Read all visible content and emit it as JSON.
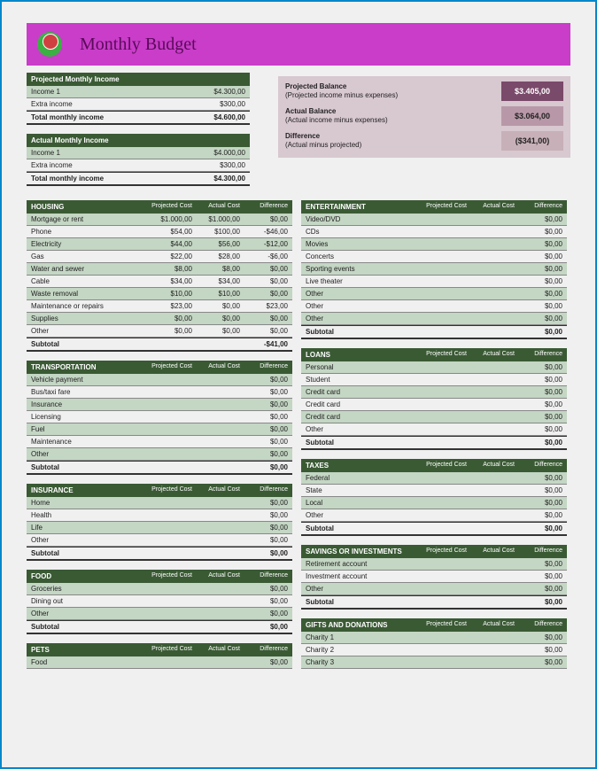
{
  "title": "Monthly Budget",
  "colors": {
    "titlebar": "#c93dc9",
    "header": "#3a5a34",
    "alt_row": "#c4d6c4",
    "summary_bg": "#d8c8d0",
    "page_bg": "#f0f0f0",
    "border": "#0088cc"
  },
  "col_labels": {
    "proj": "Projected Cost",
    "act": "Actual Cost",
    "diff": "Difference"
  },
  "projected_income": {
    "title": "Projected Monthly Income",
    "rows": [
      {
        "label": "Income 1",
        "value": "$4.300,00"
      },
      {
        "label": "Extra income",
        "value": "$300,00"
      }
    ],
    "total": {
      "label": "Total monthly income",
      "value": "$4.600,00"
    }
  },
  "actual_income": {
    "title": "Actual Monthly Income",
    "rows": [
      {
        "label": "Income 1",
        "value": "$4.000,00"
      },
      {
        "label": "Extra income",
        "value": "$300,00"
      }
    ],
    "total": {
      "label": "Total monthly income",
      "value": "$4.300,00"
    }
  },
  "summary": [
    {
      "title": "Projected Balance",
      "sub": "(Projected income minus expenses)",
      "value": "$3.405,00",
      "box": "box1"
    },
    {
      "title": "Actual Balance",
      "sub": "(Actual income minus expenses)",
      "value": "$3.064,00",
      "box": "box2"
    },
    {
      "title": "Difference",
      "sub": "(Actual minus projected)",
      "value": "($341,00)",
      "box": "box3"
    }
  ],
  "left_cats": [
    {
      "title": "HOUSING",
      "rows": [
        {
          "n": "Mortgage or rent",
          "p": "$1.000,00",
          "a": "$1.000,00",
          "d": "$0,00"
        },
        {
          "n": "Phone",
          "p": "$54,00",
          "a": "$100,00",
          "d": "-$46,00"
        },
        {
          "n": "Electricity",
          "p": "$44,00",
          "a": "$56,00",
          "d": "-$12,00"
        },
        {
          "n": "Gas",
          "p": "$22,00",
          "a": "$28,00",
          "d": "-$6,00"
        },
        {
          "n": "Water and sewer",
          "p": "$8,00",
          "a": "$8,00",
          "d": "$0,00"
        },
        {
          "n": "Cable",
          "p": "$34,00",
          "a": "$34,00",
          "d": "$0,00"
        },
        {
          "n": "Waste removal",
          "p": "$10,00",
          "a": "$10,00",
          "d": "$0,00"
        },
        {
          "n": "Maintenance or repairs",
          "p": "$23,00",
          "a": "$0,00",
          "d": "$23,00"
        },
        {
          "n": "Supplies",
          "p": "$0,00",
          "a": "$0,00",
          "d": "$0,00"
        },
        {
          "n": "Other",
          "p": "$0,00",
          "a": "$0,00",
          "d": "$0,00"
        }
      ],
      "subtotal": {
        "n": "Subtotal",
        "d": "-$41,00"
      }
    },
    {
      "title": "TRANSPORTATION",
      "rows": [
        {
          "n": "Vehicle payment",
          "d": "$0,00"
        },
        {
          "n": "Bus/taxi fare",
          "d": "$0,00"
        },
        {
          "n": "Insurance",
          "d": "$0,00"
        },
        {
          "n": "Licensing",
          "d": "$0,00"
        },
        {
          "n": "Fuel",
          "d": "$0,00"
        },
        {
          "n": "Maintenance",
          "d": "$0,00"
        },
        {
          "n": "Other",
          "d": "$0,00"
        }
      ],
      "subtotal": {
        "n": "Subtotal",
        "d": "$0,00"
      }
    },
    {
      "title": "INSURANCE",
      "rows": [
        {
          "n": "Home",
          "d": "$0,00"
        },
        {
          "n": "Health",
          "d": "$0,00"
        },
        {
          "n": "Life",
          "d": "$0,00"
        },
        {
          "n": "Other",
          "d": "$0,00"
        }
      ],
      "subtotal": {
        "n": "Subtotal",
        "d": "$0,00"
      }
    },
    {
      "title": "FOOD",
      "rows": [
        {
          "n": "Groceries",
          "d": "$0,00"
        },
        {
          "n": "Dining out",
          "d": "$0,00"
        },
        {
          "n": "Other",
          "d": "$0,00"
        }
      ],
      "subtotal": {
        "n": "Subtotal",
        "d": "$0,00"
      }
    },
    {
      "title": "PETS",
      "rows": [
        {
          "n": "Food",
          "d": "$0,00"
        }
      ]
    }
  ],
  "right_cats": [
    {
      "title": "ENTERTAINMENT",
      "rows": [
        {
          "n": "Video/DVD",
          "d": "$0,00"
        },
        {
          "n": "CDs",
          "d": "$0,00"
        },
        {
          "n": "Movies",
          "d": "$0,00"
        },
        {
          "n": "Concerts",
          "d": "$0,00"
        },
        {
          "n": "Sporting events",
          "d": "$0,00"
        },
        {
          "n": "Live theater",
          "d": "$0,00"
        },
        {
          "n": "Other",
          "d": "$0,00"
        },
        {
          "n": "Other",
          "d": "$0,00"
        },
        {
          "n": "Other",
          "d": "$0,00"
        }
      ],
      "subtotal": {
        "n": "Subtotal",
        "d": "$0,00"
      }
    },
    {
      "title": "LOANS",
      "rows": [
        {
          "n": "Personal",
          "d": "$0,00"
        },
        {
          "n": "Student",
          "d": "$0,00"
        },
        {
          "n": "Credit card",
          "d": "$0,00"
        },
        {
          "n": "Credit card",
          "d": "$0,00"
        },
        {
          "n": "Credit card",
          "d": "$0,00"
        },
        {
          "n": "Other",
          "d": "$0,00"
        }
      ],
      "subtotal": {
        "n": "Subtotal",
        "d": "$0,00"
      }
    },
    {
      "title": "TAXES",
      "rows": [
        {
          "n": "Federal",
          "d": "$0,00"
        },
        {
          "n": "State",
          "d": "$0,00"
        },
        {
          "n": "Local",
          "d": "$0,00"
        },
        {
          "n": "Other",
          "d": "$0,00"
        }
      ],
      "subtotal": {
        "n": "Subtotal",
        "d": "$0,00"
      }
    },
    {
      "title": "SAVINGS OR INVESTMENTS",
      "rows": [
        {
          "n": "Retirement account",
          "d": "$0,00"
        },
        {
          "n": "Investment account",
          "d": "$0,00"
        },
        {
          "n": "Other",
          "d": "$0,00"
        }
      ],
      "subtotal": {
        "n": "Subtotal",
        "d": "$0,00"
      }
    },
    {
      "title": "GIFTS AND DONATIONS",
      "rows": [
        {
          "n": "Charity 1",
          "d": "$0,00"
        },
        {
          "n": "Charity 2",
          "d": "$0,00"
        },
        {
          "n": "Charity 3",
          "d": "$0,00"
        }
      ]
    }
  ]
}
